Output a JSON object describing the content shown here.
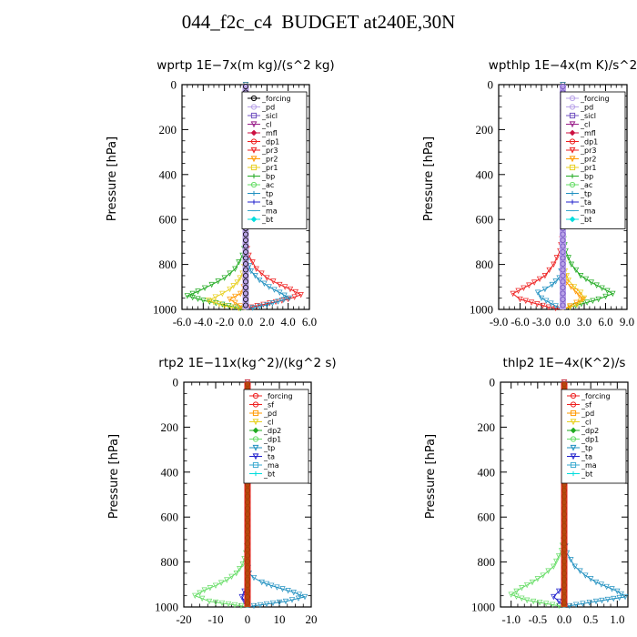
{
  "figure_title": "044_f2c_c4  BUDGET at240E,30N",
  "y_label": "Pressure [hPa]",
  "colors": {
    "forcing": "#000000",
    "pd": "#b9a3e8",
    "sicl": "#7050c0",
    "cl": "#9a1f8a",
    "mfl": "#cc1040",
    "dp1": "#ee2020",
    "pr3": "#ee2020",
    "pr2": "#ff9900",
    "pr1": "#e8d020",
    "bp": "#20aa20",
    "ac": "#66dd66",
    "tp": "#2090c0",
    "ta": "#2020cc",
    "ma": "#3aaad0",
    "bt": "#00dddd"
  },
  "chart_data": [
    {
      "type": "line",
      "title": "wprtp  1E−7x(m kg)/(s^2 kg)",
      "xlim": [
        -6,
        6
      ],
      "x_ticks": [
        "-6.0",
        "-4.0",
        "-2.0",
        "0.0",
        "2.0",
        "4.0",
        "6.0"
      ],
      "x_tick_values": [
        -6,
        -4,
        -2,
        0,
        2,
        4,
        6
      ],
      "ylim": [
        1000,
        0
      ],
      "y_ticks": [
        "0",
        "200",
        "400",
        "600",
        "800",
        "1000"
      ],
      "y_tick_values": [
        0,
        200,
        400,
        600,
        800,
        1000
      ],
      "legend_items": [
        "_forcing",
        "_pd",
        "_sicl",
        "_cl",
        "_mfl",
        "_dp1",
        "_pr3",
        "_pr2",
        "_pr1",
        "_bp",
        "_ac",
        "_tp",
        "_ta",
        "_ma",
        "_bt"
      ],
      "legend_colors": [
        "forcing",
        "pd",
        "sicl",
        "cl",
        "mfl",
        "dp1",
        "pr3",
        "pr2",
        "pr1",
        "bp",
        "ac",
        "tp",
        "ta",
        "ma",
        "bt"
      ],
      "series": [
        {
          "name": "_bp",
          "color": "bp",
          "x": [
            0,
            0,
            -0.3,
            -1.0,
            -2.0,
            -3.2,
            -4.5,
            -5.5,
            -4.0,
            -1.0,
            0
          ],
          "y": [
            0,
            700,
            760,
            820,
            860,
            890,
            920,
            940,
            960,
            990,
            1000
          ]
        },
        {
          "name": "_pr1",
          "color": "pr1",
          "x": [
            0,
            0,
            -0.3,
            -0.8,
            -1.5,
            -2.2,
            -3.5,
            -2.0,
            0
          ],
          "y": [
            0,
            780,
            840,
            880,
            910,
            930,
            960,
            985,
            1000
          ]
        },
        {
          "name": "_pr2",
          "color": "pr2",
          "x": [
            0,
            0,
            -0.2,
            -0.5,
            -1.5,
            -0.5,
            0
          ],
          "y": [
            0,
            850,
            900,
            930,
            955,
            985,
            1000
          ]
        },
        {
          "name": "_pr3",
          "color": "pr3",
          "x": [
            0,
            0,
            0.3,
            1.0,
            2.0,
            3.2,
            4.2,
            5.2,
            4.0,
            0.5,
            0
          ],
          "y": [
            0,
            700,
            760,
            820,
            860,
            890,
            910,
            935,
            955,
            990,
            1000
          ]
        },
        {
          "name": "_tp",
          "color": "tp",
          "x": [
            0,
            0,
            0.5,
            1.3,
            2.2,
            3.2,
            4.1,
            2.0,
            0
          ],
          "y": [
            0,
            760,
            830,
            870,
            900,
            925,
            950,
            980,
            1000
          ]
        }
      ]
    },
    {
      "type": "line",
      "title": "wpthlp  1E−4x(m K)/s^2",
      "xlim": [
        -9,
        9
      ],
      "x_ticks": [
        "-9.0",
        "-6.0",
        "-3.0",
        "0.0",
        "3.0",
        "6.0",
        "9.0"
      ],
      "x_tick_values": [
        -9,
        -6,
        -3,
        0,
        3,
        6,
        9
      ],
      "ylim": [
        1000,
        0
      ],
      "y_ticks": [
        "0",
        "200",
        "400",
        "600",
        "800",
        "1000"
      ],
      "y_tick_values": [
        0,
        200,
        400,
        600,
        800,
        1000
      ],
      "legend_items": [
        "_forcing",
        "_pd",
        "_sicl",
        "_cl",
        "_mfl",
        "_dp1",
        "_pr3",
        "_pr2",
        "_pr1",
        "_bp",
        "_ac",
        "_tp",
        "_ta",
        "_ma",
        "_bt"
      ],
      "legend_colors": [
        "pd",
        "pd",
        "sicl",
        "cl",
        "mfl",
        "dp1",
        "pr3",
        "pr2",
        "pr1",
        "bp",
        "ac",
        "tp",
        "ta",
        "ma",
        "bt"
      ],
      "series": [
        {
          "name": "_bp",
          "color": "bp",
          "x": [
            0,
            0,
            0.4,
            1.2,
            2.5,
            4.0,
            5.5,
            7.0,
            5.0,
            1.0,
            0
          ],
          "y": [
            0,
            660,
            740,
            800,
            850,
            880,
            905,
            930,
            955,
            990,
            1000
          ]
        },
        {
          "name": "_pr1",
          "color": "pr1",
          "x": [
            0,
            0,
            0.3,
            0.8,
            1.6,
            2.5,
            3.0,
            2.0,
            0
          ],
          "y": [
            0,
            760,
            830,
            870,
            900,
            925,
            950,
            980,
            1000
          ]
        },
        {
          "name": "_pr2",
          "color": "pr2",
          "x": [
            0,
            0,
            0.5,
            1.8,
            2.8,
            1.0,
            0
          ],
          "y": [
            0,
            830,
            880,
            920,
            955,
            985,
            1000
          ]
        },
        {
          "name": "_pr3",
          "color": "pr3",
          "x": [
            0,
            0,
            -0.4,
            -1.3,
            -2.5,
            -4.0,
            -5.5,
            -7.0,
            -6.0,
            -2.0,
            0
          ],
          "y": [
            0,
            660,
            740,
            800,
            850,
            880,
            905,
            930,
            955,
            990,
            1000
          ]
        },
        {
          "name": "_tp",
          "color": "tp",
          "x": [
            0,
            0,
            -0.5,
            -1.5,
            -2.5,
            -3.5,
            -3.0,
            -1.0,
            0
          ],
          "y": [
            0,
            800,
            860,
            890,
            910,
            925,
            950,
            985,
            1000
          ]
        }
      ]
    },
    {
      "type": "line",
      "title": "rtp2  1E−11x(kg^2)/(kg^2 s)",
      "xlim": [
        -20,
        20
      ],
      "x_ticks": [
        "-20",
        "-10",
        "0",
        "10",
        "20"
      ],
      "x_tick_values": [
        -20,
        -10,
        0,
        10,
        20
      ],
      "ylim": [
        1000,
        0
      ],
      "y_ticks": [
        "0",
        "200",
        "400",
        "600",
        "800",
        "1000"
      ],
      "y_tick_values": [
        0,
        200,
        400,
        600,
        800,
        1000
      ],
      "legend_items": [
        "_forcing",
        "_sf",
        "_pd",
        "_cl",
        "_dp2",
        "_dp1",
        "_tp",
        "_ta",
        "_ma",
        "_bt"
      ],
      "legend_colors": [
        "dp1",
        "dp1",
        "pr2",
        "pr1",
        "bp",
        "ac",
        "tp",
        "ta",
        "ma",
        "bt"
      ],
      "series": [
        {
          "name": "_dp1",
          "color": "ac",
          "x": [
            0,
            0,
            -0.5,
            -1.5,
            -3.5,
            -6.5,
            -10.0,
            -13.5,
            -16.5,
            -12.0,
            -2.0,
            0
          ],
          "y": [
            0,
            700,
            760,
            810,
            850,
            880,
            905,
            925,
            950,
            975,
            995,
            1000
          ]
        },
        {
          "name": "_tp",
          "color": "tp",
          "x": [
            0,
            0,
            0.5,
            2.0,
            4.5,
            7.5,
            11.0,
            14.5,
            18.0,
            12.0,
            2.0,
            0
          ],
          "y": [
            0,
            800,
            850,
            870,
            890,
            905,
            920,
            935,
            955,
            975,
            995,
            1000
          ]
        },
        {
          "name": "_ta",
          "color": "ta",
          "x": [
            0,
            0,
            -1.0,
            -1.8,
            -1.0,
            0
          ],
          "y": [
            0,
            900,
            930,
            955,
            975,
            1000
          ]
        },
        {
          "name": "_forcing",
          "color": "dp1",
          "x": [
            0,
            0
          ],
          "y": [
            0,
            1000
          ]
        }
      ]
    },
    {
      "type": "line",
      "title": "thlp2  1E−4x(K^2)/s",
      "xlim": [
        -1.2,
        1.2
      ],
      "x_ticks": [
        "-1.0",
        "-0.5",
        "0.0",
        "0.5",
        "1.0"
      ],
      "x_tick_values": [
        -1.0,
        -0.5,
        0.0,
        0.5,
        1.0
      ],
      "ylim": [
        1000,
        0
      ],
      "y_ticks": [
        "0",
        "200",
        "400",
        "600",
        "800",
        "1000"
      ],
      "y_tick_values": [
        0,
        200,
        400,
        600,
        800,
        1000
      ],
      "legend_items": [
        "_forcing",
        "_sf",
        "_pd",
        "_cl",
        "_dp2",
        "_dp1",
        "_tp",
        "_ta",
        "_ma",
        "_bt"
      ],
      "legend_colors": [
        "dp1",
        "dp1",
        "pr2",
        "pr1",
        "bp",
        "ac",
        "tp",
        "ta",
        "ma",
        "bt"
      ],
      "series": [
        {
          "name": "_dp1",
          "color": "ac",
          "x": [
            0,
            0,
            -0.05,
            -0.2,
            -0.4,
            -0.6,
            -0.8,
            -1.0,
            -0.7,
            -0.1,
            0
          ],
          "y": [
            0,
            680,
            750,
            820,
            860,
            890,
            915,
            945,
            970,
            995,
            1000
          ]
        },
        {
          "name": "_tp",
          "color": "tp",
          "x": [
            0,
            0,
            0.05,
            0.2,
            0.4,
            0.6,
            0.8,
            1.0,
            1.15,
            0.6,
            0.1,
            0
          ],
          "y": [
            0,
            700,
            760,
            820,
            860,
            890,
            910,
            930,
            955,
            975,
            995,
            1000
          ]
        },
        {
          "name": "_ta",
          "color": "ta",
          "x": [
            0,
            0,
            -0.1,
            -0.2,
            -0.1,
            0
          ],
          "y": [
            0,
            900,
            930,
            955,
            975,
            1000
          ]
        },
        {
          "name": "_forcing",
          "color": "dp1",
          "x": [
            0,
            0
          ],
          "y": [
            0,
            1000
          ]
        }
      ]
    }
  ]
}
